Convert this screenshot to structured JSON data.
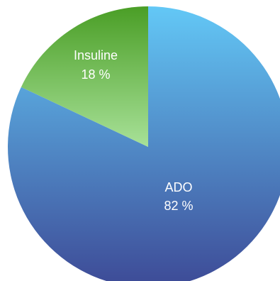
{
  "chart_data": {
    "type": "pie",
    "categories": [
      "ADO",
      "Insuline"
    ],
    "values": [
      82,
      18
    ],
    "value_labels": [
      "82 %",
      "18 %"
    ],
    "colors": {
      "ADO": {
        "light": "#63c8f6",
        "dark": "#3d4a96"
      },
      "Insuline": {
        "light": "#a8e198",
        "dark": "#4a9e26"
      }
    },
    "title": "",
    "legend": "none",
    "labels_inside_slices": true
  }
}
